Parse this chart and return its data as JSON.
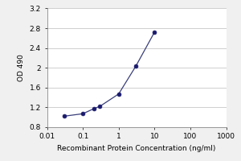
{
  "x": [
    0.03,
    0.1,
    0.2,
    0.3,
    1.0,
    3.0,
    10.0
  ],
  "y": [
    1.02,
    1.07,
    1.17,
    1.22,
    1.47,
    2.03,
    2.72
  ],
  "xlim": [
    0.01,
    1000
  ],
  "ylim": [
    0.8,
    3.2
  ],
  "yticks": [
    0.8,
    1.2,
    1.6,
    2.0,
    2.4,
    2.8,
    3.2
  ],
  "ytick_labels": [
    "0.8",
    "1.2",
    "1.6",
    "2",
    "2.4",
    "2.8",
    "3.2"
  ],
  "xticks": [
    0.01,
    0.1,
    1,
    10,
    100,
    1000
  ],
  "xtick_labels": [
    "0.01",
    "0.1",
    "1",
    "10",
    "100",
    "1000"
  ],
  "xlabel": "Recombinant Protein Concentration (ng/ml)",
  "ylabel": "OD 490",
  "line_color": "#3a3f7a",
  "marker_color": "#1a1a6e",
  "bg_color": "#f0f0f0",
  "plot_bg_color": "#ffffff",
  "grid_color": "#c8c8c8",
  "label_fontsize": 6.5,
  "tick_fontsize": 6.5
}
